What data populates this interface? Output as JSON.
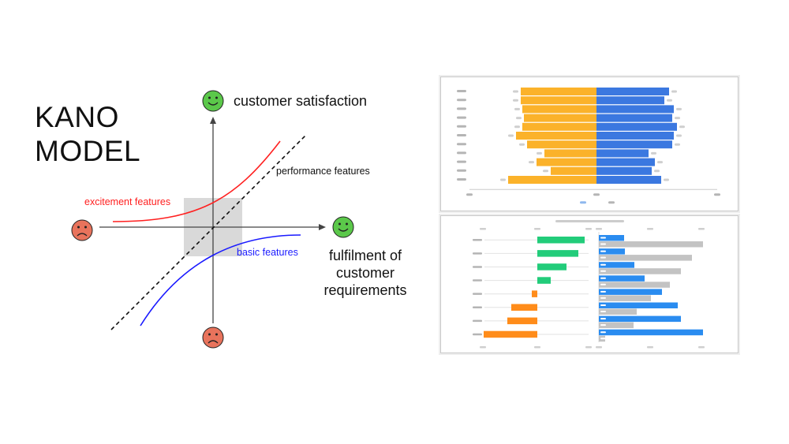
{
  "title": {
    "line1": "KANO",
    "line2": "MODEL"
  },
  "labels": {
    "y_axis": "customer satisfaction",
    "x_axis": [
      "fulfilment of",
      "customer",
      "requirements"
    ],
    "performance": "performance features",
    "excitement": "excitement features",
    "basic": "basic features"
  },
  "colors": {
    "excitement": "#ff2020",
    "basic": "#1a1aff",
    "happy_face": "#5bc84a",
    "sad_face": "#e8735c",
    "butterfly_left": "#fbb22a",
    "butterfly_right": "#3b78e0",
    "positive": "#22cc7a",
    "negative": "#ff8c1a",
    "bars_blue": "#2a8cf0",
    "bars_gray": "#c3c3c3"
  },
  "icons": {
    "top": "smiley-happy-icon",
    "right": "smiley-happy-icon",
    "left": "smiley-sad-icon",
    "bottom": "smiley-sad-icon"
  },
  "chart_data": [
    {
      "type": "bar",
      "orientation": "diverging-horizontal",
      "categories": [
        "",
        "",
        "",
        "",
        "",
        "",
        "",
        "",
        "",
        "",
        ""
      ],
      "series": [
        {
          "values": [
            -96,
            -96,
            -94,
            -92,
            -94,
            -102,
            -88,
            -66,
            -76,
            -58,
            -112
          ]
        },
        {
          "values": [
            92,
            86,
            98,
            96,
            102,
            98,
            96,
            66,
            74,
            70,
            82
          ]
        }
      ]
    },
    {
      "type": "bar",
      "orientation": "horizontal",
      "categories": [
        "",
        "",
        "",
        "",
        "",
        "",
        "",
        ""
      ],
      "series": [
        {
          "values": [
            60,
            52,
            37,
            17,
            -7,
            -33,
            -38,
            -68
          ]
        }
      ]
    },
    {
      "type": "bar",
      "orientation": "horizontal",
      "categories": [
        "",
        "",
        "",
        "",
        "",
        "",
        "",
        ""
      ],
      "series": [
        {
          "values": [
            32,
            33,
            45,
            58,
            80,
            100,
            104,
            132
          ]
        },
        {
          "values": [
            132,
            118,
            104,
            90,
            66,
            48,
            44,
            8
          ]
        }
      ]
    }
  ]
}
